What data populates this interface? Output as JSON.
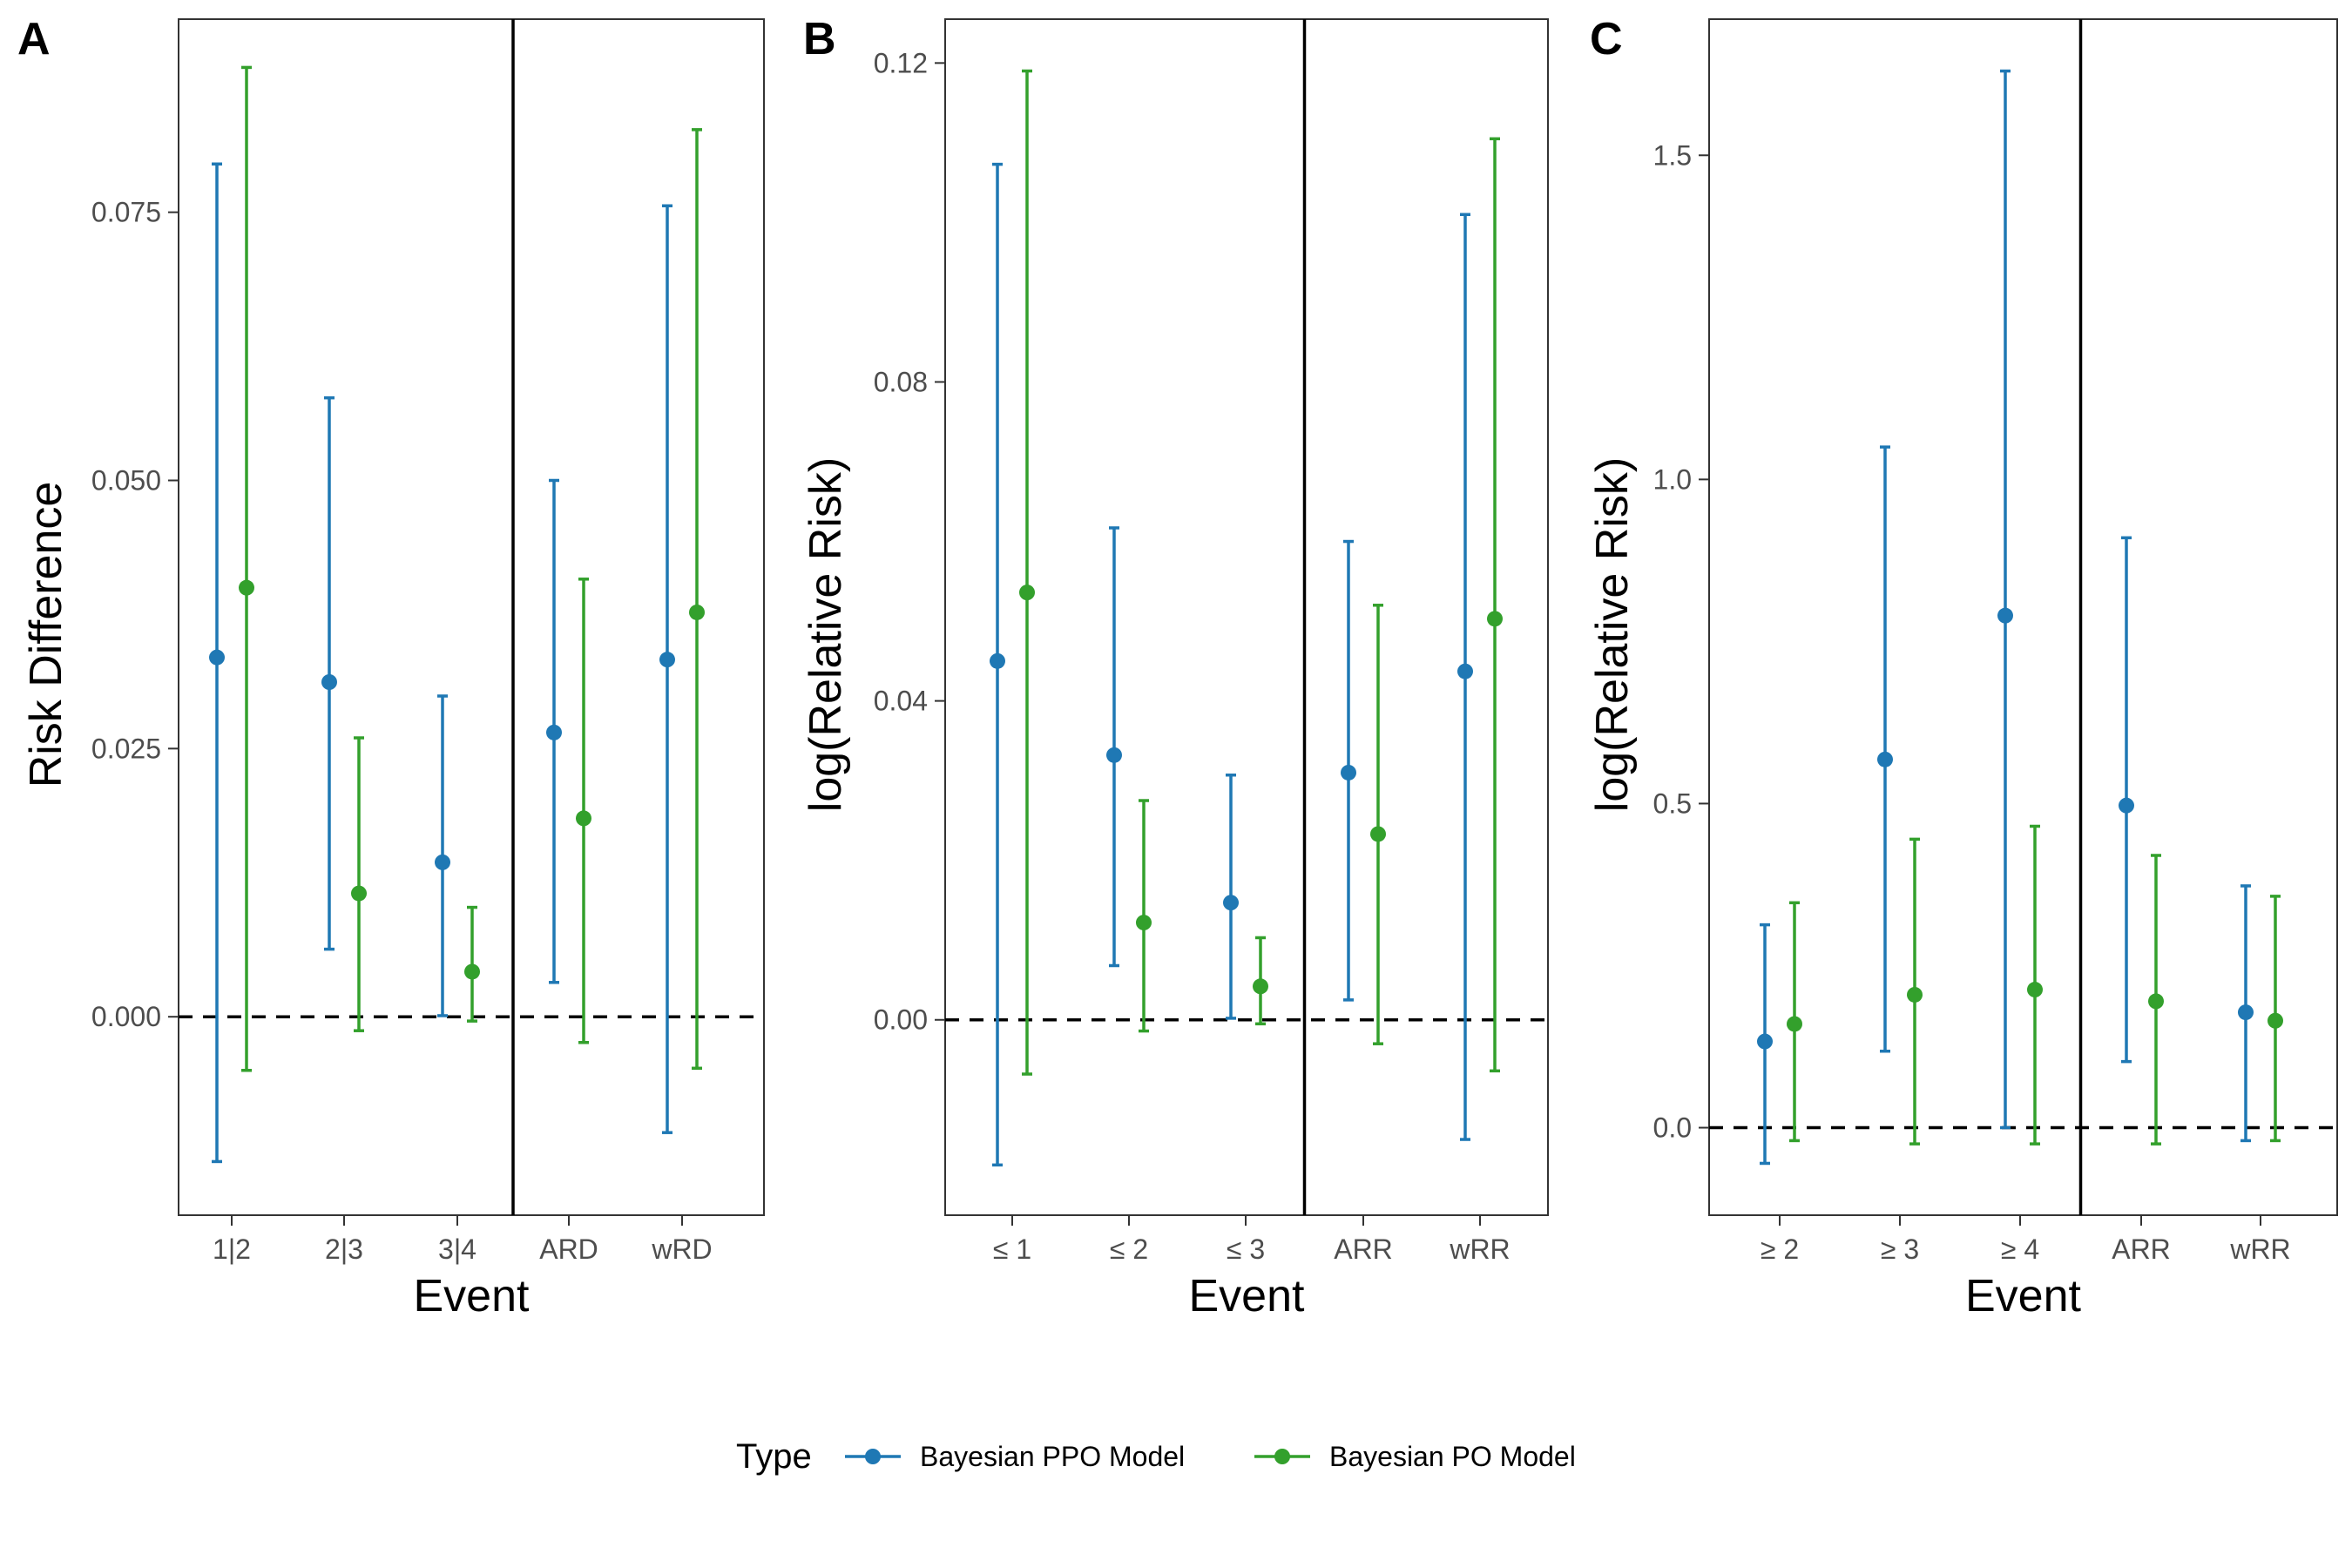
{
  "colors": {
    "ppo": "#1f78b4",
    "po": "#33a02c",
    "frame": "#333333",
    "separator": "#000000",
    "zero_line": "#000000"
  },
  "legend": {
    "title": "Type",
    "items": [
      {
        "label": "Bayesian PPO Model",
        "color": "#1f78b4"
      },
      {
        "label": "Bayesian PO Model",
        "color": "#33a02c"
      }
    ]
  },
  "chart_data": [
    {
      "type": "errorbar",
      "panel_label": "A",
      "xlabel": "Event",
      "ylabel": "Risk Difference",
      "categories": [
        "1|2",
        "2|3",
        "3|4",
        "ARD",
        "wRD"
      ],
      "separator_after_category": 3,
      "ylim": [
        -0.0185,
        0.093
      ],
      "yticks": [
        0.0,
        0.025,
        0.05,
        0.075
      ],
      "ytick_labels": [
        "0.000",
        "0.025",
        "0.050",
        "0.075"
      ],
      "reference_line": 0,
      "series": [
        {
          "name": "Bayesian PPO Model",
          "estimate": [
            0.0335,
            0.0312,
            0.0144,
            0.0265,
            0.0333
          ],
          "lower": [
            -0.0135,
            0.0063,
            0.0001,
            0.0032,
            -0.0108
          ],
          "upper": [
            0.0795,
            0.0577,
            0.0299,
            0.05,
            0.0756
          ]
        },
        {
          "name": "Bayesian PO Model",
          "estimate": [
            0.04,
            0.0115,
            0.0042,
            0.0185,
            0.0377
          ],
          "lower": [
            -0.005,
            -0.0013,
            -0.0004,
            -0.0024,
            -0.0048
          ],
          "upper": [
            0.0885,
            0.026,
            0.0102,
            0.0408,
            0.0827
          ]
        }
      ]
    },
    {
      "type": "errorbar",
      "panel_label": "B",
      "xlabel": "Event",
      "ylabel": "log(Relative Risk)",
      "categories": [
        "≤ 1",
        "≤ 2",
        "≤ 3",
        "ARR",
        "wRR"
      ],
      "separator_after_category": 3,
      "ylim": [
        -0.0245,
        0.1255
      ],
      "yticks": [
        0.0,
        0.04,
        0.08,
        0.12
      ],
      "ytick_labels": [
        "0.00",
        "0.04",
        "0.08",
        "0.12"
      ],
      "reference_line": 0,
      "series": [
        {
          "name": "Bayesian PPO Model",
          "estimate": [
            0.045,
            0.0332,
            0.0147,
            0.031,
            0.0437
          ],
          "lower": [
            -0.0182,
            0.0068,
            0.0002,
            0.0025,
            -0.015
          ],
          "upper": [
            0.1073,
            0.0617,
            0.0307,
            0.06,
            0.101
          ]
        },
        {
          "name": "Bayesian PO Model",
          "estimate": [
            0.0536,
            0.0122,
            0.0042,
            0.0233,
            0.0503
          ],
          "lower": [
            -0.0068,
            -0.0014,
            -0.0005,
            -0.003,
            -0.0064
          ],
          "upper": [
            0.119,
            0.0275,
            0.0103,
            0.052,
            0.1105
          ]
        }
      ]
    },
    {
      "type": "errorbar",
      "panel_label": "C",
      "xlabel": "Event",
      "ylabel": "log(Relative Risk)",
      "categories": [
        "≥ 2",
        "≥ 3",
        "≥ 4",
        "ARR",
        "wRR"
      ],
      "separator_after_category": 3,
      "ylim": [
        -0.135,
        1.71
      ],
      "yticks": [
        0.0,
        0.5,
        1.0,
        1.5
      ],
      "ytick_labels": [
        "0.0",
        "0.5",
        "1.0",
        "1.5"
      ],
      "reference_line": 0,
      "series": [
        {
          "name": "Bayesian PPO Model",
          "estimate": [
            0.133,
            0.568,
            0.79,
            0.497,
            0.178
          ],
          "lower": [
            -0.055,
            0.118,
            0.0,
            0.102,
            -0.02
          ],
          "upper": [
            0.313,
            1.05,
            1.63,
            0.91,
            0.373
          ]
        },
        {
          "name": "Bayesian PO Model",
          "estimate": [
            0.16,
            0.205,
            0.213,
            0.195,
            0.165
          ],
          "lower": [
            -0.02,
            -0.025,
            -0.025,
            -0.025,
            -0.02
          ],
          "upper": [
            0.347,
            0.445,
            0.465,
            0.42,
            0.357
          ]
        }
      ]
    }
  ]
}
